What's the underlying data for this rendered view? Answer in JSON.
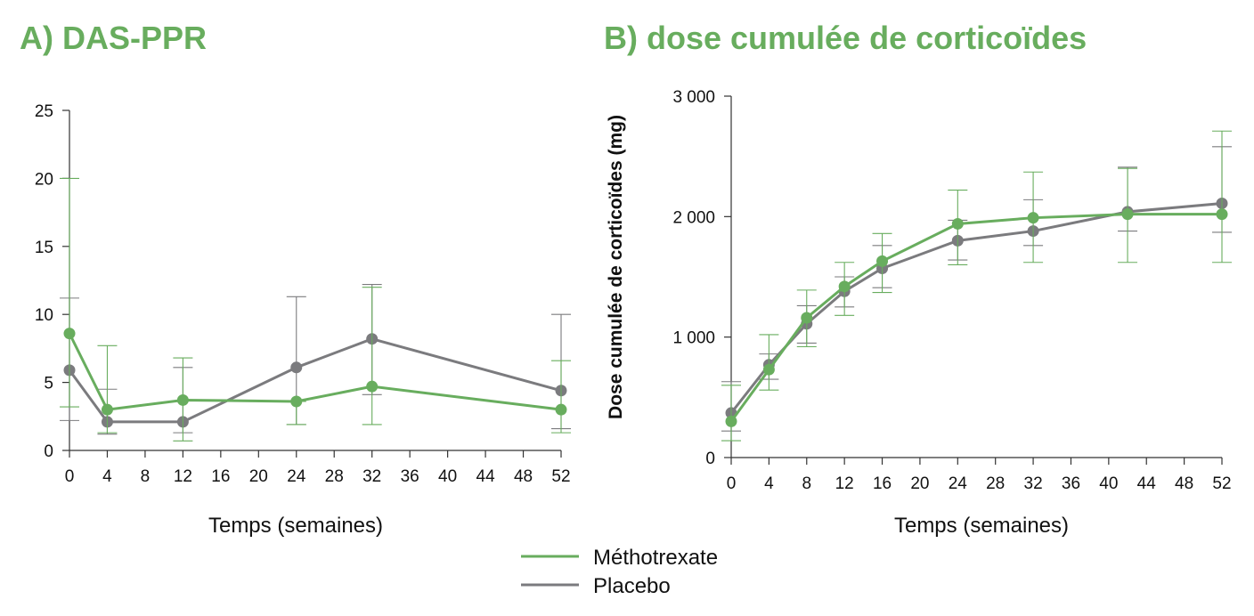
{
  "colors": {
    "methotrexate": "#68ad5e",
    "placebo": "#7b7b7e",
    "title": "#68ad5e",
    "axis": "#333333"
  },
  "legend": [
    {
      "name": "Méthotrexate",
      "color_key": "methotrexate"
    },
    {
      "name": "Placebo",
      "color_key": "placebo"
    }
  ],
  "chart_data": [
    {
      "type": "line",
      "title": "A) DAS-PPR",
      "xlabel": "Temps (semaines)",
      "ylabel": "",
      "xlim": [
        0,
        52
      ],
      "ylim": [
        0,
        25
      ],
      "x_ticks": [
        0,
        4,
        8,
        12,
        16,
        20,
        24,
        28,
        32,
        36,
        40,
        44,
        48,
        52
      ],
      "y_ticks": [
        0,
        5,
        10,
        15,
        20,
        25
      ],
      "y_tick_labels": [
        "0",
        "5",
        "10",
        "15",
        "20",
        "25"
      ],
      "series": [
        {
          "name": "Placebo",
          "color_key": "placebo",
          "x": [
            0,
            4,
            12,
            24,
            32,
            52
          ],
          "y": [
            5.9,
            2.1,
            2.1,
            6.1,
            8.2,
            4.4
          ],
          "err_low": [
            2.2,
            1.2,
            1.3,
            1.9,
            4.1,
            1.6
          ],
          "err_high": [
            11.2,
            4.5,
            6.1,
            11.3,
            12.2,
            10.0
          ]
        },
        {
          "name": "Méthotrexate",
          "color_key": "methotrexate",
          "x": [
            0,
            4,
            12,
            24,
            32,
            52
          ],
          "y": [
            8.6,
            3.0,
            3.7,
            3.6,
            4.7,
            3.0
          ],
          "err_low": [
            3.2,
            1.3,
            0.7,
            1.9,
            1.9,
            1.3
          ],
          "err_high": [
            20.0,
            7.7,
            6.8,
            3.6,
            12.0,
            6.6
          ]
        }
      ]
    },
    {
      "type": "line",
      "title": "B) dose cumulée de corticoïdes",
      "xlabel": "Temps (semaines)",
      "ylabel": "Dose cumulée de corticoïdes (mg)",
      "xlim": [
        0,
        52
      ],
      "ylim": [
        0,
        3000
      ],
      "x_ticks": [
        0,
        4,
        8,
        12,
        16,
        20,
        24,
        28,
        32,
        36,
        40,
        44,
        48,
        52
      ],
      "y_ticks": [
        0,
        1000,
        2000,
        3000
      ],
      "y_tick_labels": [
        "0",
        "1 000",
        "2 000",
        "3 000"
      ],
      "series": [
        {
          "name": "Placebo",
          "color_key": "placebo",
          "x": [
            0,
            4,
            8,
            12,
            16,
            24,
            32,
            42,
            52
          ],
          "y": [
            370,
            770,
            1110,
            1380,
            1570,
            1800,
            1880,
            2040,
            2110
          ],
          "err_low": [
            220,
            650,
            950,
            1250,
            1410,
            1640,
            1760,
            1880,
            1870
          ],
          "err_high": [
            630,
            860,
            1260,
            1500,
            1760,
            1970,
            2140,
            2410,
            2580
          ]
        },
        {
          "name": "Méthotrexate",
          "color_key": "methotrexate",
          "x": [
            0,
            4,
            8,
            12,
            16,
            24,
            32,
            42,
            52
          ],
          "y": [
            300,
            730,
            1160,
            1420,
            1630,
            1940,
            1990,
            2020,
            2020
          ],
          "err_low": [
            140,
            560,
            920,
            1180,
            1370,
            1600,
            1620,
            1620,
            1620
          ],
          "err_high": [
            600,
            1020,
            1390,
            1620,
            1860,
            2220,
            2370,
            2400,
            2710
          ]
        }
      ]
    }
  ]
}
